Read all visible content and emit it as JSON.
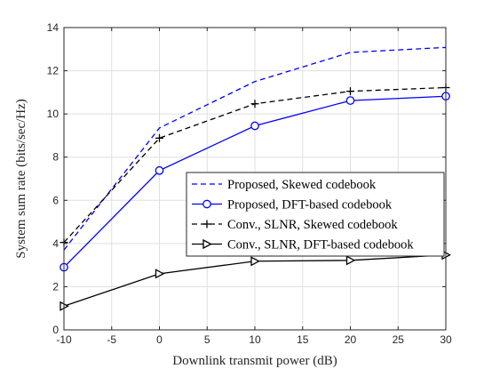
{
  "chart_data": {
    "type": "line",
    "title": "",
    "xlabel": "Downlink transmit power (dB)",
    "ylabel": "System sum rate (bits/sec/Hz)",
    "xlim": [
      -10,
      30
    ],
    "ylim": [
      0,
      14
    ],
    "xticks": [
      -10,
      -5,
      0,
      5,
      10,
      15,
      20,
      25,
      30
    ],
    "yticks": [
      0,
      2,
      4,
      6,
      8,
      10,
      12,
      14
    ],
    "grid": true,
    "legend_position": "center-right",
    "x": [
      -10,
      0,
      10,
      20,
      30
    ],
    "series": [
      {
        "name": "Proposed, Skewed codebook",
        "values": [
          3.7,
          9.35,
          11.5,
          12.85,
          13.08
        ],
        "color": "#0000ff",
        "dash": "dashed",
        "marker": "none"
      },
      {
        "name": "Proposed, DFT-based codebook",
        "values": [
          2.9,
          7.38,
          9.45,
          10.62,
          10.82
        ],
        "color": "#0000ff",
        "dash": "solid",
        "marker": "circle"
      },
      {
        "name": "Conv., SLNR, Skewed codebook",
        "values": [
          4.05,
          8.88,
          10.47,
          11.05,
          11.22
        ],
        "color": "#000000",
        "dash": "dashed",
        "marker": "plus"
      },
      {
        "name": "Conv., SLNR, DFT-based codebook",
        "values": [
          1.1,
          2.6,
          3.18,
          3.22,
          3.47
        ],
        "color": "#000000",
        "dash": "solid",
        "marker": "triangle-right"
      }
    ]
  }
}
